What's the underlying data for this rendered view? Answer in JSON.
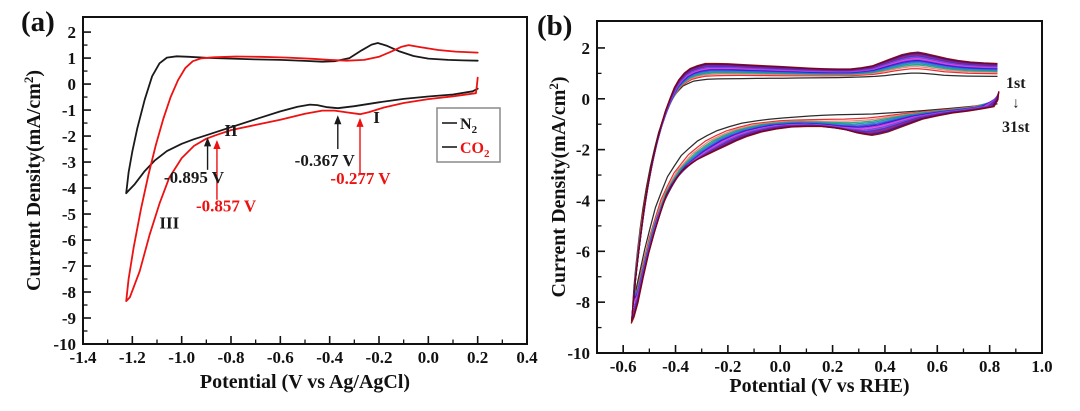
{
  "figure": {
    "background": "#ffffff",
    "frame_color": "#111111",
    "panel_a_label": "(a)",
    "panel_b_label": "(b)"
  },
  "chart_data": [
    {
      "id": "a",
      "type": "line",
      "panel_label": "(a)",
      "xlabel": "Potential (V vs Ag/AgCl)",
      "ylabel": {
        "pre": "Current Density(mA/cm",
        "sup": "2",
        "post": ")"
      },
      "xlim": [
        -1.4,
        0.4
      ],
      "ylim": [
        -10,
        2.58
      ],
      "xticks": [
        -1.4,
        -1.2,
        -1.0,
        -0.8,
        -0.6,
        -0.4,
        -0.2,
        0.0,
        0.2,
        0.4
      ],
      "xtick_labels": [
        "-1.4",
        "-1.2",
        "-1.0",
        "-0.8",
        "-0.6",
        "-0.4",
        "-0.2",
        "0.0",
        "0.2",
        "0.4"
      ],
      "yticks": [
        2,
        1,
        0,
        -1,
        -2,
        -3,
        -4,
        -5,
        -6,
        -7,
        -8,
        -9,
        -10
      ],
      "ytick_labels": [
        "2",
        "1",
        "0",
        "-1",
        "-2",
        "-3",
        "-4",
        "-5",
        "-6",
        "-7",
        "-8",
        "-9",
        "-10"
      ],
      "grid": false,
      "legend": {
        "position": "middle-right",
        "swatch_color": "#4a4a4a",
        "entries": [
          {
            "base": "N",
            "sub": "2",
            "color": "#1a1a1a"
          },
          {
            "base": "CO",
            "sub": "2",
            "color": "#ee1111"
          }
        ]
      },
      "series": [
        {
          "name": "N2",
          "color": "#1a1a1a",
          "points": [
            [
              0.2,
              -0.18
            ],
            [
              0.18,
              -0.28
            ],
            [
              0.1,
              -0.4
            ],
            [
              0.0,
              -0.48
            ],
            [
              -0.1,
              -0.57
            ],
            [
              -0.2,
              -0.7
            ],
            [
              -0.3,
              -0.85
            ],
            [
              -0.367,
              -0.93
            ],
            [
              -0.41,
              -0.89
            ],
            [
              -0.45,
              -0.81
            ],
            [
              -0.48,
              -0.79
            ],
            [
              -0.53,
              -0.87
            ],
            [
              -0.6,
              -1.05
            ],
            [
              -0.7,
              -1.35
            ],
            [
              -0.8,
              -1.66
            ],
            [
              -0.895,
              -1.95
            ],
            [
              -0.95,
              -2.12
            ],
            [
              -1.0,
              -2.3
            ],
            [
              -1.06,
              -2.58
            ],
            [
              -1.11,
              -2.95
            ],
            [
              -1.15,
              -3.35
            ],
            [
              -1.19,
              -3.85
            ],
            [
              -1.225,
              -4.2
            ],
            [
              -1.215,
              -3.4
            ],
            [
              -1.2,
              -2.6
            ],
            [
              -1.18,
              -1.7
            ],
            [
              -1.15,
              -0.6
            ],
            [
              -1.12,
              0.3
            ],
            [
              -1.09,
              0.8
            ],
            [
              -1.06,
              1.02
            ],
            [
              -1.02,
              1.07
            ],
            [
              -0.97,
              1.05
            ],
            [
              -0.9,
              1.01
            ],
            [
              -0.8,
              0.98
            ],
            [
              -0.7,
              0.95
            ],
            [
              -0.6,
              0.93
            ],
            [
              -0.5,
              0.89
            ],
            [
              -0.43,
              0.86
            ],
            [
              -0.38,
              0.88
            ],
            [
              -0.32,
              1.0
            ],
            [
              -0.27,
              1.3
            ],
            [
              -0.23,
              1.52
            ],
            [
              -0.205,
              1.58
            ],
            [
              -0.17,
              1.48
            ],
            [
              -0.12,
              1.27
            ],
            [
              -0.06,
              1.08
            ],
            [
              0.0,
              0.98
            ],
            [
              0.08,
              0.93
            ],
            [
              0.14,
              0.91
            ],
            [
              0.2,
              0.9
            ]
          ]
        },
        {
          "name": "CO2",
          "color": "#ee1111",
          "points": [
            [
              0.2,
              0.25
            ],
            [
              0.197,
              -0.05
            ],
            [
              0.193,
              -0.35
            ],
            [
              0.1,
              -0.47
            ],
            [
              0.0,
              -0.58
            ],
            [
              -0.1,
              -0.73
            ],
            [
              -0.18,
              -0.9
            ],
            [
              -0.24,
              -1.08
            ],
            [
              -0.277,
              -1.16
            ],
            [
              -0.33,
              -1.09
            ],
            [
              -0.38,
              -1.02
            ],
            [
              -0.43,
              -1.02
            ],
            [
              -0.5,
              -1.14
            ],
            [
              -0.6,
              -1.37
            ],
            [
              -0.7,
              -1.57
            ],
            [
              -0.8,
              -1.77
            ],
            [
              -0.857,
              -1.95
            ],
            [
              -0.9,
              -2.1
            ],
            [
              -0.95,
              -2.38
            ],
            [
              -1.0,
              -2.85
            ],
            [
              -1.05,
              -3.6
            ],
            [
              -1.09,
              -4.6
            ],
            [
              -1.13,
              -5.8
            ],
            [
              -1.17,
              -7.2
            ],
            [
              -1.21,
              -8.2
            ],
            [
              -1.225,
              -8.35
            ],
            [
              -1.215,
              -7.5
            ],
            [
              -1.195,
              -6.3
            ],
            [
              -1.165,
              -4.8
            ],
            [
              -1.135,
              -3.5
            ],
            [
              -1.105,
              -2.35
            ],
            [
              -1.075,
              -1.35
            ],
            [
              -1.045,
              -0.5
            ],
            [
              -1.015,
              0.15
            ],
            [
              -0.985,
              0.62
            ],
            [
              -0.955,
              0.88
            ],
            [
              -0.92,
              0.99
            ],
            [
              -0.87,
              1.03
            ],
            [
              -0.78,
              1.06
            ],
            [
              -0.68,
              1.05
            ],
            [
              -0.57,
              1.02
            ],
            [
              -0.47,
              0.97
            ],
            [
              -0.4,
              0.93
            ],
            [
              -0.33,
              0.9
            ],
            [
              -0.26,
              0.93
            ],
            [
              -0.2,
              1.05
            ],
            [
              -0.15,
              1.25
            ],
            [
              -0.11,
              1.43
            ],
            [
              -0.08,
              1.5
            ],
            [
              -0.03,
              1.42
            ],
            [
              0.04,
              1.31
            ],
            [
              0.11,
              1.25
            ],
            [
              0.2,
              1.21
            ]
          ]
        }
      ],
      "annotations": [
        {
          "type": "arrow",
          "x": -0.895,
          "y_tip": -2.05,
          "y_tail": -3.3,
          "color": "#1a1a1a"
        },
        {
          "type": "arrow",
          "x": -0.857,
          "y_tip": -2.15,
          "y_tail": -4.45,
          "color": "#ee1111"
        },
        {
          "type": "arrow",
          "x": -0.367,
          "y_tip": -1.2,
          "y_tail": -2.5,
          "color": "#1a1a1a"
        },
        {
          "type": "arrow",
          "x": -0.277,
          "y_tip": -1.3,
          "y_tail": -3.45,
          "color": "#ee1111"
        },
        {
          "type": "text",
          "text": "-0.895 V",
          "x": -0.95,
          "y": -3.8,
          "color": "#1a1a1a",
          "size": 17
        },
        {
          "type": "text",
          "text": "-0.857 V",
          "x": -0.82,
          "y": -4.9,
          "color": "#ee1111",
          "size": 17
        },
        {
          "type": "text",
          "text": "-0.367 V",
          "x": -0.42,
          "y": -3.15,
          "color": "#1a1a1a",
          "size": 17
        },
        {
          "type": "text",
          "text": "-0.277 V",
          "x": -0.275,
          "y": -3.85,
          "color": "#ee1111",
          "size": 17
        },
        {
          "type": "text",
          "text": "I",
          "x": -0.21,
          "y": -1.5,
          "color": "#1a1a1a",
          "size": 17
        },
        {
          "type": "text",
          "text": "II",
          "x": -0.8,
          "y": -2.0,
          "color": "#1a1a1a",
          "size": 17
        },
        {
          "type": "text",
          "text": "III",
          "x": -1.05,
          "y": -5.55,
          "color": "#1a1a1a",
          "size": 17
        }
      ]
    },
    {
      "id": "b",
      "type": "line",
      "panel_label": "(b)",
      "xlabel": "Potential (V vs RHE)",
      "ylabel": {
        "pre": "Current Density(mA/cm",
        "sup": "2",
        "post": ")"
      },
      "xlim": [
        -0.7,
        1.0
      ],
      "ylim": [
        -10,
        3.06
      ],
      "xticks": [
        -0.6,
        -0.4,
        -0.2,
        0.0,
        0.2,
        0.4,
        0.6,
        0.8,
        1.0
      ],
      "xtick_labels": [
        "-0.6",
        "-0.4",
        "-0.2",
        "0.0",
        "0.2",
        "0.4",
        "0.6",
        "0.8",
        "1.0"
      ],
      "yticks": [
        2,
        0,
        -2,
        -4,
        -6,
        -8,
        -10
      ],
      "ytick_labels": [
        "2",
        "0",
        "-2",
        "-4",
        "-6",
        "-8",
        "-10"
      ],
      "grid": false,
      "cycles": {
        "count": 31,
        "first_label": "1st",
        "last_label": "31st",
        "draw_count": 18,
        "crowding_exponent": 0.55,
        "colors": [
          "#1a1a1a",
          "#e32222",
          "#f07878",
          "#2e9e6b",
          "#00989e",
          "#4169e1",
          "#2b3fd6",
          "#1515cc",
          "#e020e0",
          "#c060d0",
          "#8a2be2",
          "#6a5acd",
          "#3b28c8",
          "#7d1fb8",
          "#b02030",
          "#5a0f9e",
          "#2012b0",
          "#8b0000"
        ],
        "first": [
          [
            0.83,
            -0.2
          ],
          [
            0.7,
            -0.33
          ],
          [
            0.6,
            -0.42
          ],
          [
            0.5,
            -0.5
          ],
          [
            0.4,
            -0.57
          ],
          [
            0.33,
            -0.61
          ],
          [
            0.24,
            -0.62
          ],
          [
            0.14,
            -0.66
          ],
          [
            0.04,
            -0.73
          ],
          [
            -0.06,
            -0.82
          ],
          [
            -0.16,
            -0.98
          ],
          [
            -0.25,
            -1.28
          ],
          [
            -0.32,
            -1.68
          ],
          [
            -0.38,
            -2.25
          ],
          [
            -0.43,
            -3.05
          ],
          [
            -0.475,
            -4.2
          ],
          [
            -0.515,
            -5.8
          ],
          [
            -0.545,
            -7.2
          ],
          [
            -0.565,
            -8.3
          ],
          [
            -0.555,
            -6.9
          ],
          [
            -0.54,
            -5.5
          ],
          [
            -0.52,
            -3.95
          ],
          [
            -0.49,
            -2.35
          ],
          [
            -0.46,
            -1.15
          ],
          [
            -0.43,
            -0.32
          ],
          [
            -0.4,
            0.2
          ],
          [
            -0.37,
            0.52
          ],
          [
            -0.33,
            0.7
          ],
          [
            -0.28,
            0.77
          ],
          [
            -0.2,
            0.79
          ],
          [
            -0.1,
            0.8
          ],
          [
            0.0,
            0.81
          ],
          [
            0.1,
            0.82
          ],
          [
            0.2,
            0.83
          ],
          [
            0.3,
            0.85
          ],
          [
            0.38,
            0.89
          ],
          [
            0.45,
            0.97
          ],
          [
            0.51,
            1.02
          ],
          [
            0.56,
            0.99
          ],
          [
            0.63,
            0.92
          ],
          [
            0.72,
            0.89
          ],
          [
            0.83,
            0.88
          ]
        ],
        "last": [
          [
            0.835,
            0.3
          ],
          [
            0.83,
            -0.28
          ],
          [
            0.75,
            -0.44
          ],
          [
            0.65,
            -0.57
          ],
          [
            0.55,
            -0.78
          ],
          [
            0.47,
            -1.08
          ],
          [
            0.4,
            -1.35
          ],
          [
            0.35,
            -1.44
          ],
          [
            0.3,
            -1.36
          ],
          [
            0.24,
            -1.18
          ],
          [
            0.15,
            -1.08
          ],
          [
            0.05,
            -1.1
          ],
          [
            -0.05,
            -1.24
          ],
          [
            -0.14,
            -1.52
          ],
          [
            -0.21,
            -1.86
          ],
          [
            -0.27,
            -2.15
          ],
          [
            -0.33,
            -2.45
          ],
          [
            -0.38,
            -2.85
          ],
          [
            -0.43,
            -3.65
          ],
          [
            -0.47,
            -4.85
          ],
          [
            -0.51,
            -6.35
          ],
          [
            -0.545,
            -8.1
          ],
          [
            -0.57,
            -9.0
          ],
          [
            -0.558,
            -7.6
          ],
          [
            -0.543,
            -6.2
          ],
          [
            -0.523,
            -4.5
          ],
          [
            -0.498,
            -2.9
          ],
          [
            -0.468,
            -1.5
          ],
          [
            -0.438,
            -0.45
          ],
          [
            -0.408,
            0.38
          ],
          [
            -0.378,
            0.92
          ],
          [
            -0.338,
            1.24
          ],
          [
            -0.288,
            1.39
          ],
          [
            -0.218,
            1.39
          ],
          [
            -0.118,
            1.33
          ],
          [
            0.0,
            1.27
          ],
          [
            0.1,
            1.21
          ],
          [
            0.2,
            1.17
          ],
          [
            0.28,
            1.17
          ],
          [
            0.35,
            1.29
          ],
          [
            0.42,
            1.57
          ],
          [
            0.48,
            1.79
          ],
          [
            0.53,
            1.84
          ],
          [
            0.59,
            1.7
          ],
          [
            0.66,
            1.53
          ],
          [
            0.74,
            1.43
          ],
          [
            0.83,
            1.39
          ]
        ]
      },
      "annotations": [
        {
          "type": "text",
          "text": "1st",
          "x": 0.9,
          "y": 0.42,
          "color": "#1a1a1a",
          "size": 16
        },
        {
          "type": "text",
          "text": "↓",
          "x": 0.9,
          "y": -0.35,
          "color": "#1a1a1a",
          "size": 15
        },
        {
          "type": "text",
          "text": "31st",
          "x": 0.9,
          "y": -1.3,
          "color": "#1a1a1a",
          "size": 16
        }
      ]
    }
  ]
}
